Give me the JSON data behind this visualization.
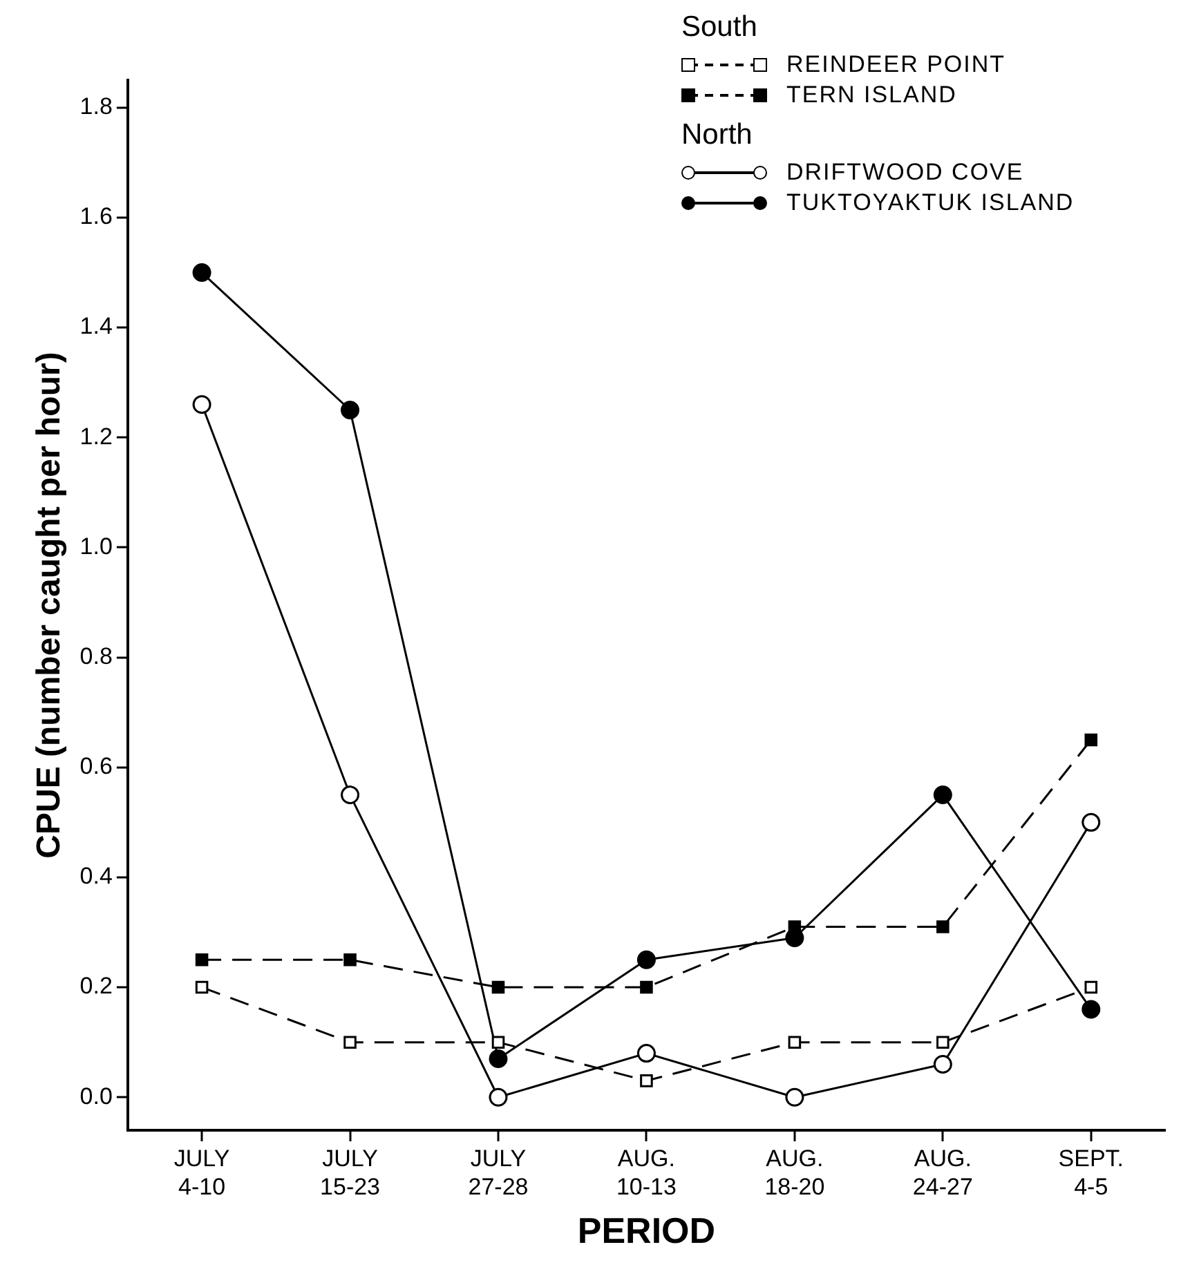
{
  "chart_data": {
    "type": "line",
    "xlabel": "PERIOD",
    "ylabel": "CPUE (number caught per hour)",
    "categories": [
      "JULY 4-10",
      "JULY 15-23",
      "JULY 27-28",
      "AUG. 10-13",
      "AUG. 18-20",
      "AUG. 24-27",
      "SEPT. 4-5"
    ],
    "series": [
      {
        "name": "REINDEER POINT",
        "color": "#000000",
        "marker": "square-open",
        "line_style": "dashed",
        "values": [
          0.2,
          0.1,
          0.1,
          0.03,
          0.1,
          0.1,
          0.2
        ]
      },
      {
        "name": "TERN ISLAND",
        "color": "#000000",
        "marker": "square",
        "line_style": "dashed",
        "values": [
          0.25,
          0.25,
          0.2,
          0.2,
          0.31,
          0.31,
          0.65
        ]
      },
      {
        "name": "DRIFTWOOD COVE",
        "color": "#000000",
        "marker": "circle-open",
        "line_style": "solid",
        "values": [
          1.26,
          0.55,
          0,
          0.08,
          0,
          0.06,
          0.5
        ]
      },
      {
        "name": "TUKTOYAKTUK ISLAND",
        "color": "#000000",
        "marker": "circle",
        "line_style": "solid",
        "values": [
          1.5,
          1.25,
          0.07,
          0.25,
          0.29,
          0.55,
          0.16
        ]
      }
    ],
    "annotations": [
      "South",
      "North"
    ],
    "ylim": [
      -0.06,
      1.85
    ],
    "yticks": [
      {
        "value": 0,
        "label": "0.0"
      },
      0.2,
      0.4,
      0.6,
      0.8,
      {
        "value": 1,
        "label": "1.0"
      },
      1.2,
      1.4,
      1.6,
      1.8
    ],
    "grid": false,
    "legend": "top right"
  }
}
